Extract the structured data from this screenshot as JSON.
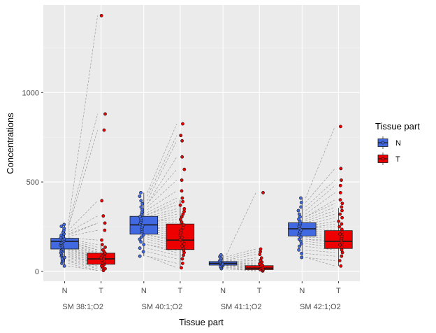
{
  "chart_data": {
    "type": "boxplot",
    "xlabel": "Tissue part",
    "ylabel": "Concentrations",
    "ylim": [
      -55,
      1490
    ],
    "yticks": [
      0,
      500,
      1000
    ],
    "ytick_labels": [
      "0",
      "500",
      "1000"
    ],
    "legend": {
      "title": "Tissue part",
      "placement": "right",
      "entries": [
        {
          "label": "N",
          "color": "#4169E1"
        },
        {
          "label": "T",
          "color": "#EE0000"
        }
      ]
    },
    "groups": [
      {
        "name": "SM 38:1;O2",
        "N": {
          "label": "N",
          "q1": 125,
          "median": 168,
          "q3": 185,
          "whisker_low": 30,
          "whisker_high": 265,
          "points": [
            30,
            45,
            55,
            62,
            70,
            78,
            85,
            92,
            98,
            104,
            110,
            116,
            122,
            128,
            134,
            140,
            146,
            152,
            158,
            164,
            170,
            176,
            182,
            188,
            195,
            202,
            210,
            218,
            228,
            240,
            252,
            262
          ]
        },
        "T": {
          "label": "T",
          "q1": 40,
          "median": 70,
          "q3": 102,
          "whisker_low": 5,
          "whisker_high": 150,
          "points": [
            5,
            15,
            22,
            30,
            38,
            45,
            52,
            58,
            64,
            70,
            76,
            82,
            88,
            95,
            102,
            110,
            120,
            135,
            150,
            175,
            230,
            270,
            310,
            395,
            790,
            880,
            1430
          ]
        }
      },
      {
        "name": "SM 40:1;O2",
        "N": {
          "label": "N",
          "q1": 208,
          "median": 260,
          "q3": 308,
          "whisker_low": 85,
          "whisker_high": 440,
          "points": [
            85,
            110,
            130,
            150,
            165,
            180,
            192,
            204,
            215,
            226,
            236,
            246,
            256,
            266,
            276,
            286,
            296,
            306,
            318,
            330,
            345,
            360,
            378,
            395,
            420,
            440
          ]
        },
        "T": {
          "label": "T",
          "q1": 122,
          "median": 175,
          "q3": 265,
          "whisker_low": 20,
          "whisker_high": 400,
          "points": [
            20,
            45,
            70,
            90,
            105,
            118,
            130,
            142,
            154,
            166,
            178,
            190,
            202,
            216,
            230,
            245,
            260,
            275,
            290,
            305,
            320,
            335,
            350,
            370,
            390,
            410,
            450,
            510,
            570,
            640,
            730,
            760,
            825
          ]
        }
      },
      {
        "name": "SM 41:1;O2",
        "N": {
          "label": "N",
          "q1": 35,
          "median": 45,
          "q3": 55,
          "whisker_low": 15,
          "whisker_high": 92,
          "points": [
            15,
            22,
            28,
            33,
            37,
            41,
            45,
            49,
            53,
            58,
            64,
            72,
            82,
            92
          ]
        },
        "T": {
          "label": "T",
          "q1": 10,
          "median": 18,
          "q3": 32,
          "whisker_low": 2,
          "whisker_high": 60,
          "points": [
            2,
            6,
            10,
            14,
            18,
            22,
            28,
            34,
            42,
            52,
            62,
            75,
            95,
            110,
            125,
            440
          ]
        }
      },
      {
        "name": "SM 42:1;O2",
        "N": {
          "label": "N",
          "q1": 198,
          "median": 238,
          "q3": 272,
          "whisker_low": 78,
          "whisker_high": 410,
          "points": [
            78,
            100,
            120,
            140,
            155,
            168,
            180,
            192,
            202,
            212,
            222,
            232,
            242,
            252,
            262,
            272,
            282,
            292,
            305,
            320,
            340,
            360,
            385,
            410
          ]
        },
        "T": {
          "label": "T",
          "q1": 128,
          "median": 168,
          "q3": 228,
          "whisker_low": 30,
          "whisker_high": 355,
          "points": [
            30,
            60,
            85,
            105,
            120,
            135,
            148,
            160,
            172,
            184,
            196,
            208,
            220,
            235,
            250,
            265,
            280,
            300,
            320,
            340,
            360,
            380,
            400,
            440,
            480,
            510,
            575,
            810
          ]
        }
      }
    ]
  }
}
